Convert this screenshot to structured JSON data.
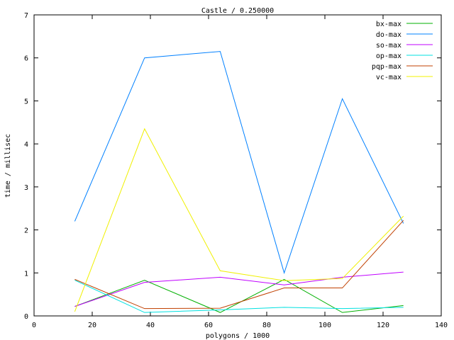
{
  "chart_data": {
    "type": "line",
    "title": "Castle / 0.250000",
    "xlabel": "polygons / 1000",
    "ylabel": "time / millisec",
    "xlim": [
      0,
      140
    ],
    "ylim": [
      0,
      7
    ],
    "xticks": [
      0,
      20,
      40,
      60,
      80,
      100,
      120,
      140
    ],
    "yticks": [
      0,
      1,
      2,
      3,
      4,
      5,
      6,
      7
    ],
    "grid": false,
    "legend_position": "top-right",
    "x": [
      14,
      38,
      64,
      86,
      106,
      127
    ],
    "series": [
      {
        "name": "bx-max",
        "color": "#00b000",
        "values": [
          0.22,
          0.83,
          0.08,
          0.85,
          0.08,
          0.24
        ]
      },
      {
        "name": "do-max",
        "color": "#0080ff",
        "values": [
          2.2,
          6.0,
          6.15,
          1.0,
          5.05,
          2.15
        ]
      },
      {
        "name": "so-max",
        "color": "#c000ff",
        "values": [
          0.22,
          0.78,
          0.9,
          0.72,
          0.9,
          1.02
        ]
      },
      {
        "name": "op-max",
        "color": "#00e0e0",
        "values": [
          0.83,
          0.08,
          0.14,
          0.2,
          0.17,
          0.2
        ]
      },
      {
        "name": "pqp-max",
        "color": "#c04000",
        "values": [
          0.85,
          0.17,
          0.18,
          0.65,
          0.65,
          2.22
        ]
      },
      {
        "name": "vc-max",
        "color": "#f0f000",
        "values": [
          0.1,
          4.35,
          1.05,
          0.82,
          0.87,
          2.32
        ]
      }
    ]
  }
}
